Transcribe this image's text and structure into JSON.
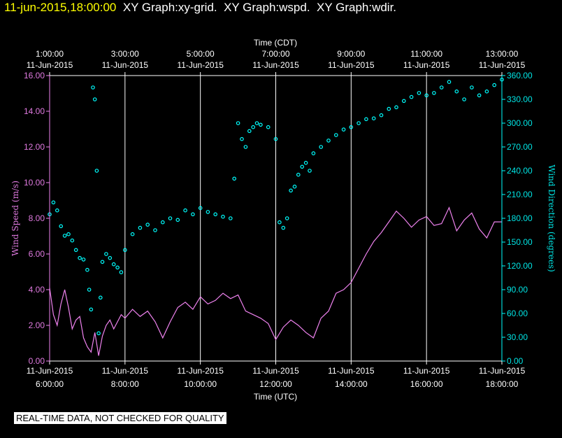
{
  "header": {
    "datetime": "11-jun-2015,18:00:00",
    "titles": [
      "XY Graph:xy-grid.",
      "XY Graph:wspd.",
      "XY Graph:wdir."
    ]
  },
  "disclaimer": "REAL-TIME DATA, NOT CHECKED FOR QUALITY",
  "chart_data": {
    "type": "line",
    "top_axis": {
      "title": "Time (CDT)",
      "ticks": [
        {
          "time": "1:00:00",
          "date": "11-Jun-2015"
        },
        {
          "time": "3:00:00",
          "date": "11-Jun-2015"
        },
        {
          "time": "5:00:00",
          "date": "11-Jun-2015"
        },
        {
          "time": "7:00:00",
          "date": "11-Jun-2015"
        },
        {
          "time": "9:00:00",
          "date": "11-Jun-2015"
        },
        {
          "time": "11:00:00",
          "date": "11-Jun-2015"
        },
        {
          "time": "13:00:00",
          "date": "11-Jun-2015"
        }
      ]
    },
    "bottom_axis": {
      "title": "Time (UTC)",
      "xlim": [
        6,
        18
      ],
      "ticks": [
        {
          "x": 6,
          "date": "11-Jun-2015",
          "time": "6:00:00"
        },
        {
          "x": 8,
          "date": "11-Jun-2015",
          "time": "8:00:00"
        },
        {
          "x": 10,
          "date": "11-Jun-2015",
          "time": "10:00:00"
        },
        {
          "x": 12,
          "date": "11-Jun-2015",
          "time": "12:00:00"
        },
        {
          "x": 14,
          "date": "11-Jun-2015",
          "time": "14:00:00"
        },
        {
          "x": 16,
          "date": "11-Jun-2015",
          "time": "16:00:00"
        },
        {
          "x": 18,
          "date": "11-Jun-2015",
          "time": "18:00:00"
        }
      ]
    },
    "left_axis": {
      "title": "Wind Speed (m/s)",
      "ylim": [
        0,
        16
      ],
      "ticks": [
        "0.00",
        "2.00",
        "4.00",
        "6.00",
        "8.00",
        "10.00",
        "12.00",
        "14.00",
        "16.00"
      ]
    },
    "right_axis": {
      "title": "Wind Direction (degrees)",
      "ylim": [
        0,
        360
      ],
      "ticks": [
        "0.00",
        "30.00",
        "60.00",
        "90.00",
        "120.00",
        "150.00",
        "180.00",
        "210.00",
        "240.00",
        "270.00",
        "300.00",
        "330.00",
        "360.00"
      ]
    },
    "grid": "vertical",
    "colors": {
      "speed": "#ee82ee",
      "direction": "#00ffff",
      "grid": "#ffffff"
    },
    "series": [
      {
        "key": "wspd",
        "style": "line",
        "x": [
          6.0,
          6.1,
          6.2,
          6.3,
          6.4,
          6.5,
          6.6,
          6.7,
          6.8,
          6.9,
          7.0,
          7.1,
          7.2,
          7.3,
          7.4,
          7.5,
          7.6,
          7.7,
          7.8,
          7.9,
          8.0,
          8.2,
          8.4,
          8.6,
          8.8,
          9.0,
          9.2,
          9.4,
          9.6,
          9.8,
          10.0,
          10.2,
          10.4,
          10.6,
          10.8,
          11.0,
          11.2,
          11.4,
          11.6,
          11.8,
          12.0,
          12.2,
          12.4,
          12.6,
          12.8,
          13.0,
          13.2,
          13.4,
          13.6,
          13.8,
          14.0,
          14.2,
          14.4,
          14.6,
          14.8,
          15.0,
          15.2,
          15.4,
          15.6,
          15.8,
          16.0,
          16.2,
          16.4,
          16.6,
          16.8,
          17.0,
          17.2,
          17.4,
          17.6,
          17.8,
          18.0
        ],
        "values": [
          4.1,
          2.6,
          2.0,
          3.2,
          4.0,
          3.0,
          1.8,
          2.3,
          2.5,
          1.3,
          0.8,
          0.5,
          1.6,
          0.3,
          1.4,
          2.0,
          2.3,
          1.8,
          2.2,
          2.6,
          2.4,
          2.9,
          2.5,
          2.8,
          2.2,
          1.3,
          2.2,
          3.0,
          3.3,
          2.9,
          3.6,
          3.2,
          3.4,
          3.8,
          3.5,
          3.7,
          2.8,
          2.6,
          2.4,
          2.1,
          1.2,
          1.9,
          2.3,
          2.0,
          1.6,
          1.3,
          2.4,
          2.8,
          3.8,
          4.0,
          4.4,
          5.2,
          6.0,
          6.7,
          7.2,
          7.8,
          8.4,
          8.0,
          7.5,
          7.9,
          8.1,
          7.6,
          7.7,
          8.6,
          7.3,
          7.9,
          8.3,
          7.4,
          6.9,
          7.8,
          7.8
        ]
      },
      {
        "key": "wdir",
        "style": "points",
        "x": [
          6.0,
          6.1,
          6.2,
          6.3,
          6.4,
          6.5,
          6.6,
          6.7,
          6.8,
          6.9,
          7.0,
          7.05,
          7.1,
          7.15,
          7.2,
          7.25,
          7.3,
          7.35,
          7.4,
          7.5,
          7.6,
          7.7,
          7.8,
          7.9,
          8.0,
          8.2,
          8.4,
          8.6,
          8.8,
          9.0,
          9.2,
          9.4,
          9.6,
          9.8,
          10.0,
          10.2,
          10.4,
          10.6,
          10.8,
          10.9,
          11.0,
          11.1,
          11.2,
          11.3,
          11.4,
          11.5,
          11.6,
          11.8,
          12.0,
          12.1,
          12.2,
          12.3,
          12.4,
          12.5,
          12.6,
          12.7,
          12.8,
          12.9,
          13.0,
          13.2,
          13.4,
          13.6,
          13.8,
          14.0,
          14.2,
          14.4,
          14.6,
          14.8,
          15.0,
          15.2,
          15.4,
          15.6,
          15.8,
          16.0,
          16.2,
          16.4,
          16.6,
          16.8,
          17.0,
          17.2,
          17.4,
          17.6,
          17.8,
          18.0
        ],
        "values": [
          185,
          200,
          190,
          170,
          158,
          160,
          152,
          140,
          130,
          128,
          115,
          90,
          65,
          345,
          330,
          240,
          35,
          80,
          125,
          135,
          130,
          122,
          118,
          112,
          140,
          160,
          168,
          172,
          165,
          175,
          180,
          178,
          190,
          185,
          193,
          188,
          185,
          182,
          180,
          230,
          300,
          280,
          270,
          290,
          295,
          300,
          298,
          295,
          280,
          175,
          168,
          180,
          215,
          220,
          235,
          245,
          250,
          240,
          262,
          270,
          278,
          285,
          292,
          295,
          300,
          305,
          306,
          310,
          318,
          320,
          328,
          333,
          338,
          335,
          338,
          345,
          352,
          340,
          330,
          345,
          335,
          340,
          348,
          355
        ]
      }
    ]
  }
}
